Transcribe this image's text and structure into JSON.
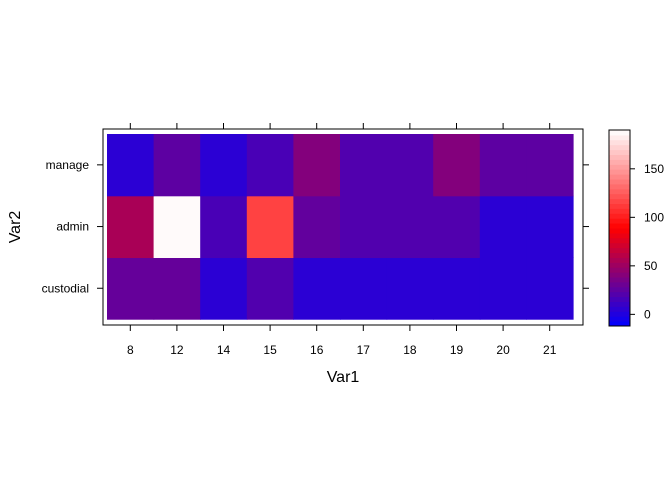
{
  "chart_data": {
    "type": "heatmap",
    "title": "",
    "xlabel": "Var1",
    "ylabel": "Var2",
    "x_categories": [
      "8",
      "12",
      "14",
      "15",
      "16",
      "17",
      "18",
      "19",
      "20",
      "21"
    ],
    "y_categories": [
      "custodial",
      "admin",
      "manage"
    ],
    "values": [
      [
        28,
        28,
        5,
        20,
        5,
        5,
        5,
        5,
        5,
        5
      ],
      [
        55,
        188,
        17,
        115,
        27,
        20,
        20,
        20,
        5,
        5
      ],
      [
        5,
        25,
        5,
        17,
        40,
        20,
        20,
        40,
        25,
        25
      ]
    ],
    "colorbar": {
      "range": [
        -12,
        190
      ],
      "ticks": [
        0,
        50,
        100,
        150
      ],
      "tick_labels": [
        "0",
        "50",
        "100",
        "150"
      ],
      "colors": [
        "#0000ff",
        "#ff0000",
        "#ffffff"
      ]
    },
    "grid": false,
    "legend": "right"
  }
}
